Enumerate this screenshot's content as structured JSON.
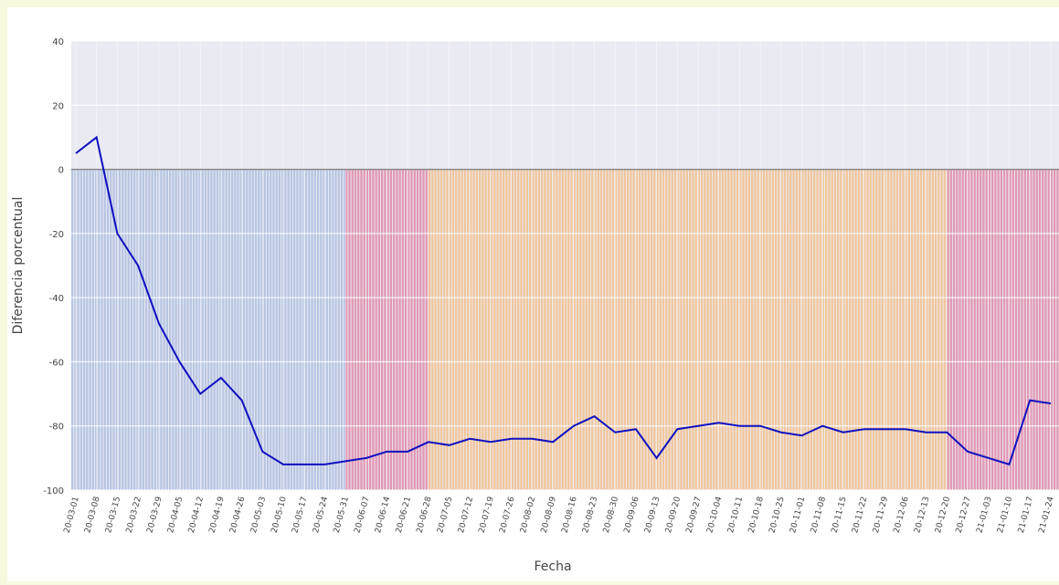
{
  "chart_data": {
    "type": "line",
    "x_label": "Fecha",
    "y_label": "Diferencia porcentual",
    "categories": [
      "20-03-01",
      "20-03-08",
      "20-03-15",
      "20-03-22",
      "20-03-29",
      "20-04-05",
      "20-04-12",
      "20-04-19",
      "20-04-26",
      "20-05-03",
      "20-05-10",
      "20-05-17",
      "20-05-24",
      "20-05-31",
      "20-06-07",
      "20-06-14",
      "20-06-21",
      "20-06-28",
      "20-07-05",
      "20-07-12",
      "20-07-19",
      "20-07-26",
      "20-08-02",
      "20-08-09",
      "20-08-16",
      "20-08-23",
      "20-08-30",
      "20-09-06",
      "20-09-13",
      "20-09-20",
      "20-09-27",
      "20-10-04",
      "20-10-11",
      "20-10-18",
      "20-10-25",
      "20-11-01",
      "20-11-08",
      "20-11-15",
      "20-11-22",
      "20-11-29",
      "20-12-06",
      "20-12-13",
      "20-12-20",
      "20-12-27",
      "21-01-03",
      "21-01-10",
      "21-01-17",
      "21-01-24"
    ],
    "series": [
      {
        "color": "#1010c0",
        "values": [
          5,
          10,
          -20,
          -30,
          -48,
          -60,
          -70,
          -65,
          -72,
          -88,
          -92,
          -92,
          -92,
          -91,
          -90,
          -88,
          -88,
          -85,
          -86,
          -84,
          -85,
          -84,
          -84,
          -85,
          -80,
          -77,
          -82,
          -81,
          -90,
          -81,
          -80,
          -79,
          -80,
          -80,
          -82,
          -83,
          -80,
          -82,
          -81,
          -81,
          -81,
          -82,
          -82,
          -88,
          -90,
          -92,
          -72,
          -73
        ]
      }
    ],
    "regions": [
      {
        "from": "20-03-01",
        "to": "20-05-31",
        "color": "#aebfe0"
      },
      {
        "from": "20-05-31",
        "to": "20-06-28",
        "color": "#e088a8"
      },
      {
        "from": "20-06-28",
        "to": "20-12-20",
        "color": "#f2c08c"
      },
      {
        "from": "20-12-20",
        "to": "21-01-24",
        "color": "#e088a8"
      }
    ],
    "ylim": [
      -100,
      40
    ],
    "yticks": [
      -100,
      -80,
      -60,
      -40,
      -20,
      0,
      20,
      40
    ],
    "grid": true
  }
}
